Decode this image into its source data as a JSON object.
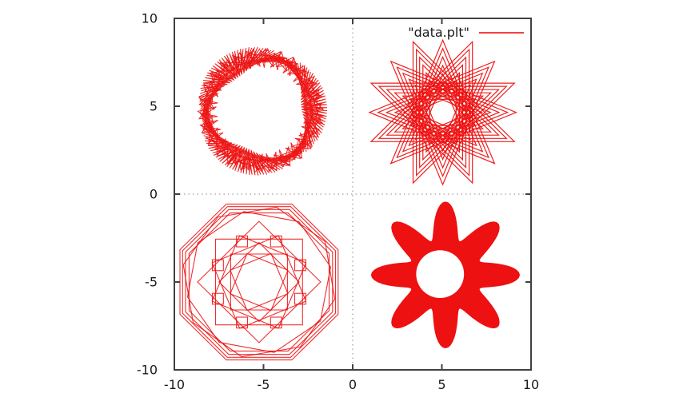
{
  "chart_data": {
    "type": "line",
    "title": "",
    "xlabel": "",
    "ylabel": "",
    "xlim": [
      -10,
      10
    ],
    "ylim": [
      -10,
      10
    ],
    "x_ticks": [
      -10,
      -5,
      0,
      5,
      10
    ],
    "y_ticks": [
      -10,
      -5,
      0,
      5,
      10
    ],
    "x_tick_labels": [
      "-10",
      "-5",
      "0",
      "5",
      "10"
    ],
    "y_tick_labels": [
      "-10",
      "-5",
      "0",
      "5",
      "10"
    ],
    "grid": "dotted zero axes at x=0 and y=0, mirrored inward ticks on all four borders",
    "legend": {
      "label": "\"data.plt\"",
      "position": "top-right-inside"
    },
    "colors": {
      "curve": "#ee1111",
      "border": "#404040",
      "zero_line": "#888888",
      "tick_label": "#1a1a1a",
      "background": "#ffffff"
    },
    "figures": [
      {
        "name": "fuzzy-ring",
        "type": "trochoid-ring",
        "quadrant": "top-left",
        "center": [
          -5.15,
          4.75
        ],
        "base_radius": 3.0,
        "offset_radius": 0.72,
        "revolutions": 3,
        "segments": 360,
        "phase_step_rad": 3.2716,
        "second_pass": {
          "offset_radius": 0.55,
          "phase_step_rad": 2.52,
          "segments": 240,
          "revolutions": 2
        },
        "radial_band": [
          2.3,
          3.7
        ],
        "description": "dense zigzag annulus of short red chords centered near (-5,5)"
      },
      {
        "name": "nested-eight-point-star",
        "type": "nested-star-polygon",
        "quadrant": "top-right",
        "center": [
          5.05,
          4.65
        ],
        "schlafli": "8/3",
        "radii": [
          4.35,
          4.11,
          3.87,
          3.63,
          3.39,
          3.15,
          2.91,
          2.67,
          2.43,
          2.19,
          1.95,
          1.71
        ],
        "rotations_deg": [
          22.5,
          0
        ],
        "description": "many nested 8-pointed stars shrinking toward a dense centre, near (5,5)"
      },
      {
        "name": "octagon-rosette",
        "type": "polygon-set",
        "quadrant": "bottom-left",
        "center": [
          -5.25,
          -5.0
        ],
        "polygons": [
          {
            "sides": 8,
            "radius": 4.8,
            "rot": 22.5
          },
          {
            "sides": 8,
            "radius": 4.64,
            "rot": 22.5
          },
          {
            "sides": 8,
            "radius": 4.46,
            "rot": 22.5
          },
          {
            "sides": 8,
            "radius": 4.25,
            "rot": 22.5
          },
          {
            "sides": 8,
            "radius": 4.36,
            "rot": 32
          },
          {
            "sides": 8,
            "radius": 4.1,
            "rot": 12
          },
          {
            "sides": 4,
            "radius": 3.45,
            "rot": 0
          },
          {
            "sides": 4,
            "radius": 3.45,
            "rot": 45
          },
          {
            "sides": 4,
            "radius": 2.85,
            "rot": 22.5
          },
          {
            "sides": 4,
            "radius": 2.85,
            "rot": 67.5
          },
          {
            "sides": 4,
            "radius": 2.25,
            "rot": 0
          },
          {
            "sides": 4,
            "radius": 2.25,
            "rot": 45
          },
          {
            "sides": 4,
            "radius": 1.75,
            "rot": 22.5
          },
          {
            "sides": 4,
            "radius": 1.75,
            "rot": 67.5
          }
        ],
        "small_squares": {
          "count": 8,
          "ring_radius": 2.5,
          "start_angle_deg": 22.5,
          "step_deg": 45,
          "half_side": 0.31
        },
        "description": "concentric octagons with rotated squares forming a stepped 8-petal flower, near (-5,-5)"
      },
      {
        "name": "petal-flower",
        "type": "filled-rose",
        "quadrant": "bottom-right",
        "center": [
          5.2,
          -4.6
        ],
        "base": 3.1,
        "amplitude": 1.05,
        "petals": 8,
        "hole": {
          "center": [
            4.9,
            -4.55
          ],
          "radius": 1.35
        },
        "description": "solid dense 8-petal rosette with white central hole, near (5,-5)"
      }
    ]
  }
}
